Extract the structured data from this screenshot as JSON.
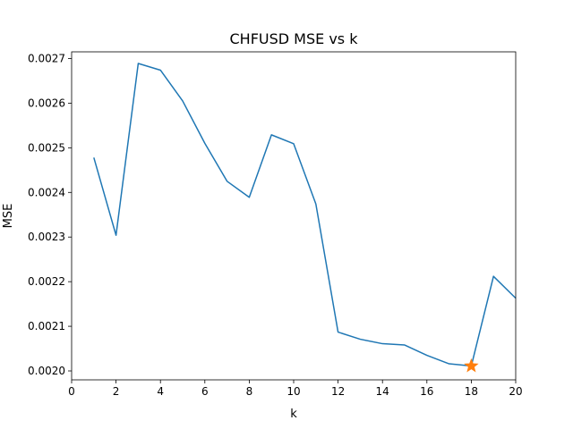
{
  "chart_data": {
    "type": "line",
    "title": "CHFUSD MSE vs k",
    "xlabel": "k",
    "ylabel": "MSE",
    "xlim": [
      0,
      20
    ],
    "ylim": [
      0.00198,
      0.002715
    ],
    "xticks": [
      0,
      2,
      4,
      6,
      8,
      10,
      12,
      14,
      16,
      18,
      20
    ],
    "xtick_labels": [
      "0",
      "2",
      "4",
      "6",
      "8",
      "10",
      "12",
      "14",
      "16",
      "18",
      "20"
    ],
    "yticks": [
      0.002,
      0.0021,
      0.0022,
      0.0023,
      0.0024,
      0.0025,
      0.0026,
      0.0027
    ],
    "ytick_labels": [
      "0.0020",
      "0.0021",
      "0.0022",
      "0.0023",
      "0.0024",
      "0.0025",
      "0.0026",
      "0.0027"
    ],
    "grid": false,
    "series": [
      {
        "color": "#1f77b4",
        "x": [
          1,
          2,
          3,
          4,
          5,
          6,
          7,
          8,
          9,
          10,
          11,
          12,
          13,
          14,
          15,
          16,
          17,
          18,
          19,
          20
        ],
        "y": [
          0.002478,
          0.002304,
          0.002689,
          0.002674,
          0.002605,
          0.00251,
          0.002425,
          0.002389,
          0.002529,
          0.002509,
          0.002374,
          0.002087,
          0.002071,
          0.002061,
          0.002058,
          0.002035,
          0.002016,
          0.002011,
          0.002212,
          0.002163
        ]
      }
    ],
    "markers": [
      {
        "shape": "star",
        "color": "#ff7f0e",
        "x": 18,
        "y": 0.002011
      }
    ]
  }
}
